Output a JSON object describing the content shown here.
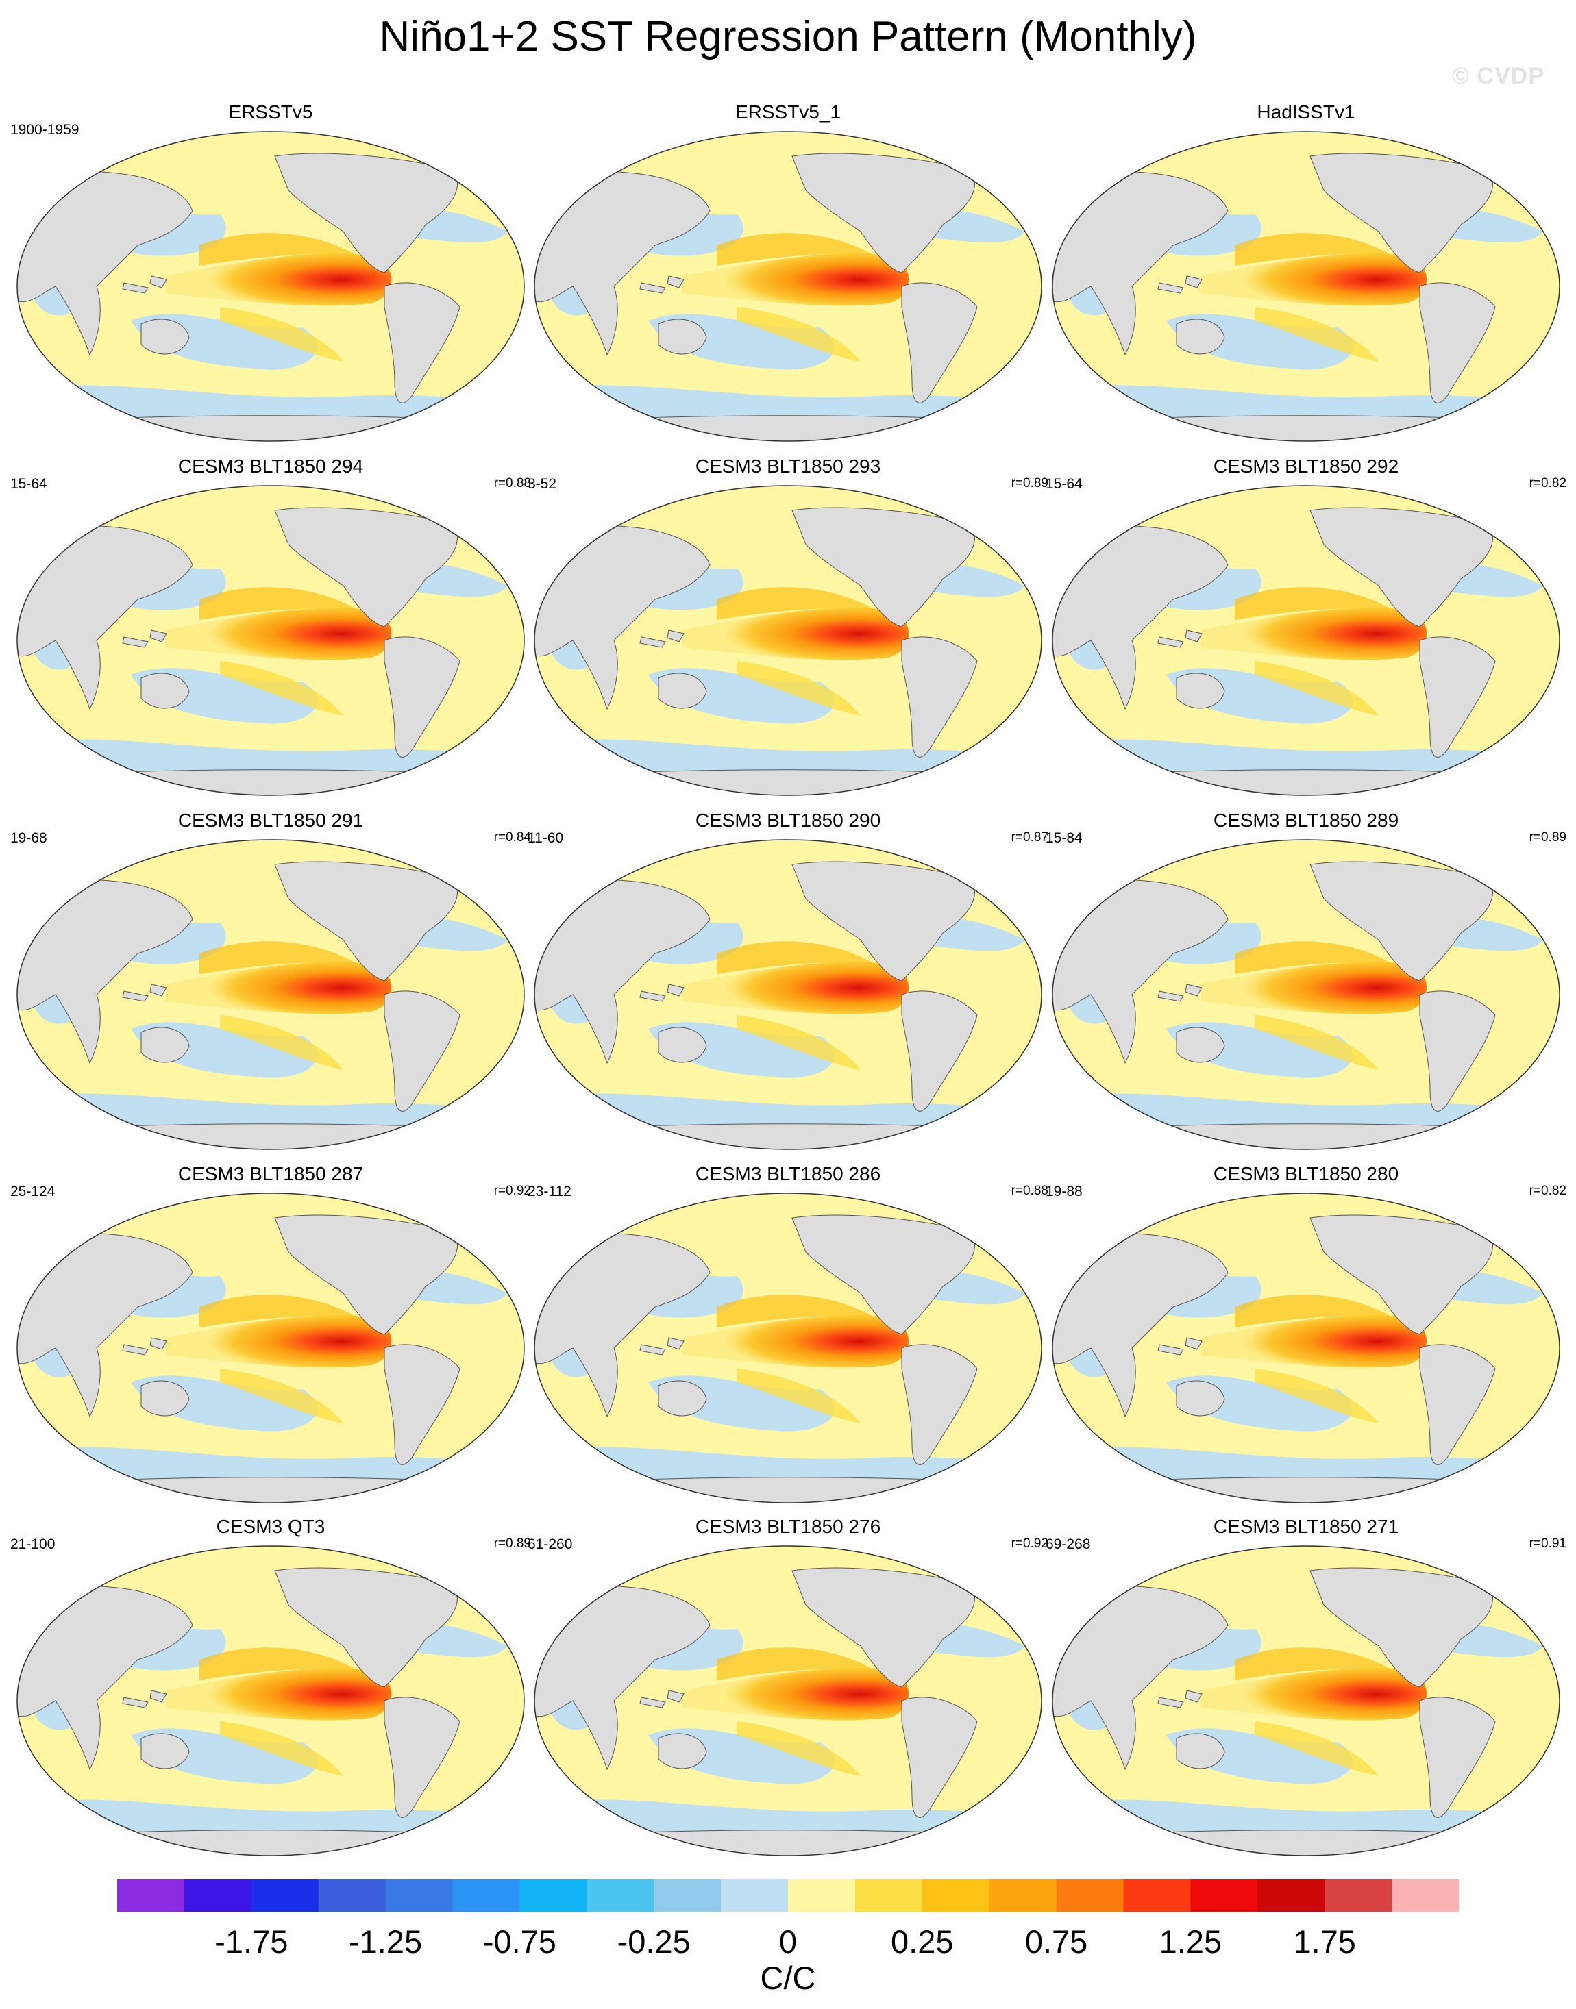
{
  "title": "Niño1+2 SST Regression Pattern (Monthly)",
  "watermark": "© CVDP",
  "colors": {
    "ocean_blue": "#c0e0f2",
    "ocean_yellow": "#fff7a3",
    "land": "#dddddd",
    "coast": "#555555"
  },
  "panels": [
    {
      "title": "ERSSTv5",
      "years": "1900-1959",
      "r": ""
    },
    {
      "title": "ERSSTv5_1",
      "years": "",
      "r": ""
    },
    {
      "title": "HadISSTv1",
      "years": "",
      "r": ""
    },
    {
      "title": "CESM3 BLT1850 294",
      "years": "15-64",
      "r": "r=0.88"
    },
    {
      "title": "CESM3 BLT1850 293",
      "years": "3-52",
      "r": "r=0.89"
    },
    {
      "title": "CESM3 BLT1850 292",
      "years": "15-64",
      "r": "r=0.82"
    },
    {
      "title": "CESM3 BLT1850 291",
      "years": "19-68",
      "r": "r=0.84"
    },
    {
      "title": "CESM3 BLT1850 290",
      "years": "11-60",
      "r": "r=0.87"
    },
    {
      "title": "CESM3 BLT1850 289",
      "years": "15-84",
      "r": "r=0.89"
    },
    {
      "title": "CESM3 BLT1850 287",
      "years": "25-124",
      "r": "r=0.92"
    },
    {
      "title": "CESM3 BLT1850 286",
      "years": "23-112",
      "r": "r=0.88"
    },
    {
      "title": "CESM3 BLT1850 280",
      "years": "19-88",
      "r": "r=0.82"
    },
    {
      "title": "CESM3 QT3",
      "years": "21-100",
      "r": "r=0.89"
    },
    {
      "title": "CESM3 BLT1850 276",
      "years": "61-260",
      "r": "r=0.92"
    },
    {
      "title": "CESM3 BLT1850 271",
      "years": "69-268",
      "r": "r=0.91"
    }
  ],
  "colorbar": {
    "colors": [
      "#8b2be2",
      "#3b14e6",
      "#1a2ee8",
      "#3a5fdc",
      "#3a7ae8",
      "#2a93f5",
      "#12b4f5",
      "#4cc4f0",
      "#90cbea",
      "#bfe0f2",
      "#fff7a3",
      "#fcdf45",
      "#fcc214",
      "#fca50f",
      "#fc7c10",
      "#fc3b14",
      "#ef0a0a",
      "#cc0707",
      "#d84242",
      "#fcb3b3"
    ],
    "labels": [
      "-1.75",
      "-1.25",
      "-0.75",
      "-0.25",
      "0",
      "0.25",
      "0.75",
      "1.25",
      "1.75"
    ],
    "units": "C/C"
  }
}
